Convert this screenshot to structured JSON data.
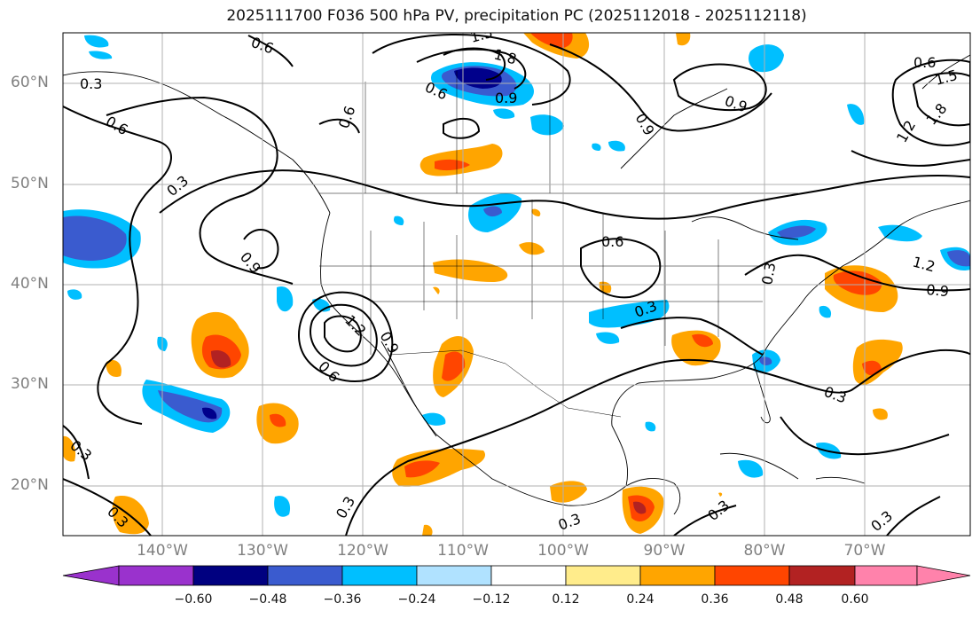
{
  "title": "2025111700 F036 500 hPa PV, precipitation PC (2025112018 - 2025112118)",
  "lat_labels": [
    "60°N",
    "50°N",
    "40°N",
    "30°N",
    "20°N"
  ],
  "lon_labels": [
    "140°W",
    "130°W",
    "120°W",
    "110°W",
    "100°W",
    "90°W",
    "80°W",
    "70°W"
  ],
  "contour_labels": [
    "0.6",
    "0.3",
    "1.5",
    "1.8",
    "0.6",
    "0.9",
    "0.6",
    "0.6",
    "0.9",
    "0.9",
    "1.5",
    "1.8",
    "1.2",
    "0.6",
    "0.3",
    "0.9",
    "1.2",
    "0.9",
    "0.6",
    "0.3",
    "1.2",
    "0.9",
    "0.6",
    "0.3",
    "0.3",
    "0.3",
    "0.3",
    "0.3",
    "0.3",
    "0.3",
    "0.3"
  ],
  "colorbar": {
    "ticks": [
      "−0.60",
      "−0.48",
      "−0.36",
      "−0.24",
      "−0.12",
      "0.12",
      "0.24",
      "0.36",
      "0.48",
      "0.60"
    ],
    "colors": [
      "#9a32cd",
      "#000080",
      "#3a5bcf",
      "#00bfff",
      "#b0e2ff",
      "#ffffff",
      "#ffec8b",
      "#ffa500",
      "#ff4500",
      "#b22222",
      "#ff82ab"
    ]
  },
  "shading_colors": {
    "light_blue": "#00bfff",
    "mid_blue": "#3a5bcf",
    "dark_blue": "#00008b",
    "orange": "#ffa500",
    "red_orange": "#ff4500",
    "dark_red": "#b22222"
  }
}
